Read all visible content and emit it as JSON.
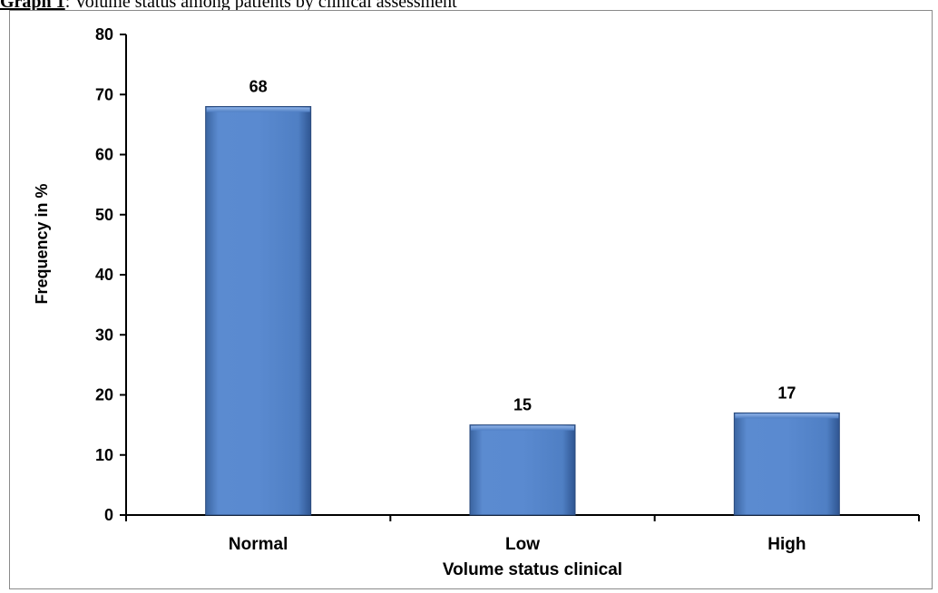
{
  "caption": {
    "lead": "Graph 1",
    "text": ": Volume status among patients by clinical assessment"
  },
  "chart_data": {
    "type": "bar",
    "categories": [
      "Normal",
      "Low",
      "High"
    ],
    "values": [
      68,
      15,
      17
    ],
    "data_labels": [
      "68",
      "15",
      "17"
    ],
    "xlabel": "Volume status clinical",
    "ylabel": "Frequency in %",
    "ylim": [
      0,
      80
    ],
    "yticks": [
      0,
      10,
      20,
      30,
      40,
      50,
      60,
      70,
      80
    ],
    "grid": false,
    "legend": "none",
    "bar_color": "#4f81bd"
  }
}
